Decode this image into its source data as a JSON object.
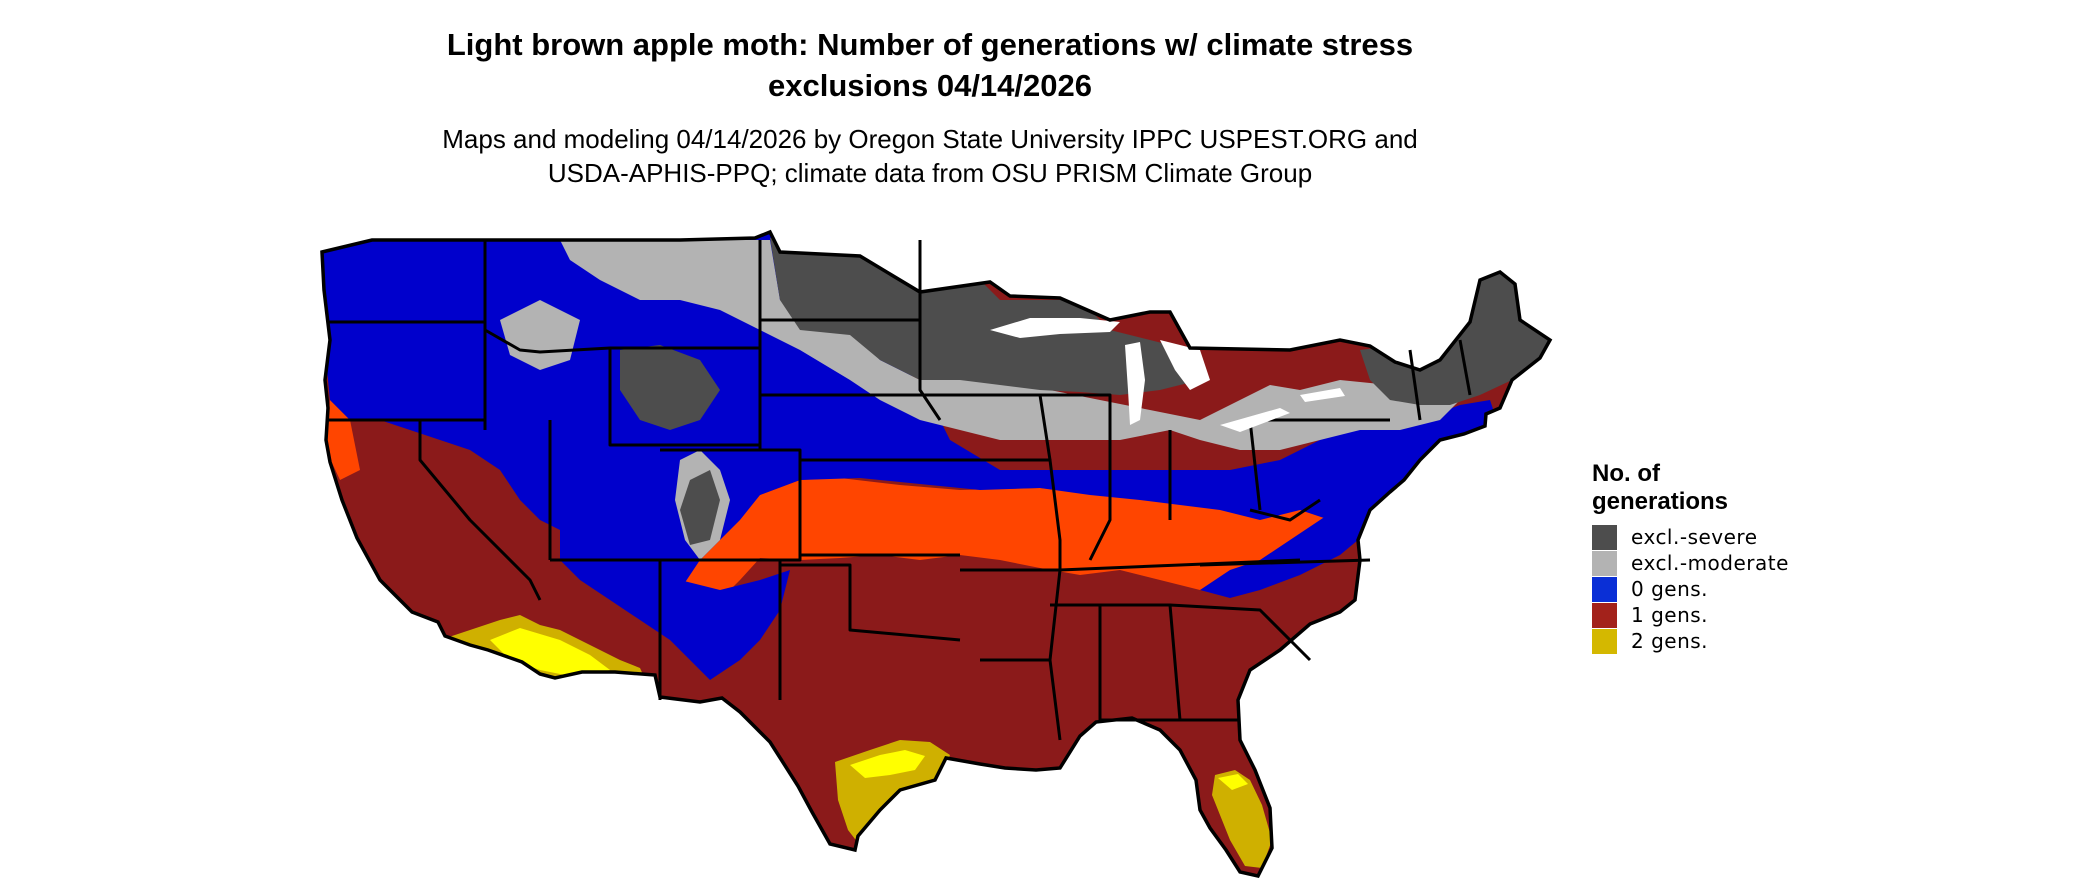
{
  "header": {
    "title_line1": "Light brown apple moth: Number of generations w/ climate stress",
    "title_line2": "exclusions 04/14/2026",
    "subtitle_line1": "Maps and modeling 04/14/2026 by Oregon State University IPPC USPEST.ORG and",
    "subtitle_line2": "USDA-APHIS-PPQ; climate data from OSU PRISM Climate Group"
  },
  "legend": {
    "title": "No. of generations",
    "items": [
      {
        "label": "excl.-severe",
        "color": "#4d4d4d"
      },
      {
        "label": "excl.-moderate",
        "color": "#b3b3b3"
      },
      {
        "label": "0 gens.",
        "color": "#0a2fd6"
      },
      {
        "label": "1 gens.",
        "color": "#a3221b"
      },
      {
        "label": "2 gens.",
        "color": "#d4b800"
      }
    ]
  },
  "map": {
    "region": "Contiguous United States",
    "category_colors": {
      "severe": "#4d4d4d",
      "moderate": "#b3b3b3",
      "zero": "#0000cc",
      "one": "#8b1a1a",
      "one_transition": "#ff4500",
      "two": "#cfb000",
      "two_highlight": "#ffff00"
    }
  }
}
